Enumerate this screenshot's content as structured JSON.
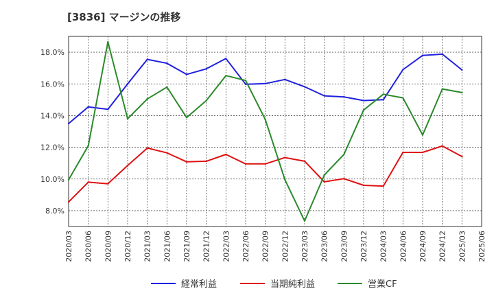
{
  "title": "[3836]  マージンの推移",
  "chart_data": {
    "type": "line",
    "title": "[3836]  マージンの推移",
    "xlabel": "",
    "ylabel": "",
    "x": [
      "2020/03",
      "2020/06",
      "2020/09",
      "2020/12",
      "2021/03",
      "2021/06",
      "2021/09",
      "2021/12",
      "2022/03",
      "2022/06",
      "2022/09",
      "2022/12",
      "2023/03",
      "2023/06",
      "2023/09",
      "2023/12",
      "2024/03",
      "2024/06",
      "2024/09",
      "2024/12",
      "2025/03",
      "2025/06"
    ],
    "ylim": [
      7.0,
      19.0
    ],
    "yticks": [
      "8.0%",
      "10.0%",
      "12.0%",
      "14.0%",
      "16.0%",
      "18.0%"
    ],
    "ytick_values": [
      8,
      10,
      12,
      14,
      16,
      18
    ],
    "grid": true,
    "legend_position": "bottom",
    "series": [
      {
        "name": "経常利益",
        "color": "#1f1fdf",
        "values": [
          13.5,
          14.55,
          14.4,
          16.0,
          17.55,
          17.3,
          16.6,
          16.95,
          17.6,
          15.98,
          16.02,
          16.28,
          15.82,
          15.25,
          15.18,
          14.95,
          15.0,
          16.9,
          17.8,
          17.88,
          16.88,
          null
        ]
      },
      {
        "name": "当期純利益",
        "color": "#e01010",
        "values": [
          8.55,
          9.8,
          9.7,
          10.85,
          11.95,
          11.65,
          11.08,
          11.12,
          11.55,
          10.95,
          10.95,
          11.35,
          11.12,
          9.82,
          10.02,
          9.6,
          9.55,
          11.68,
          11.68,
          12.08,
          11.42,
          null
        ]
      },
      {
        "name": "営業CF",
        "color": "#2a8a2a",
        "values": [
          9.95,
          12.1,
          18.65,
          13.8,
          15.05,
          15.8,
          13.88,
          14.95,
          16.52,
          16.22,
          13.75,
          9.95,
          7.35,
          10.25,
          11.55,
          14.35,
          15.35,
          15.12,
          12.78,
          15.68,
          15.45,
          null
        ]
      }
    ]
  }
}
